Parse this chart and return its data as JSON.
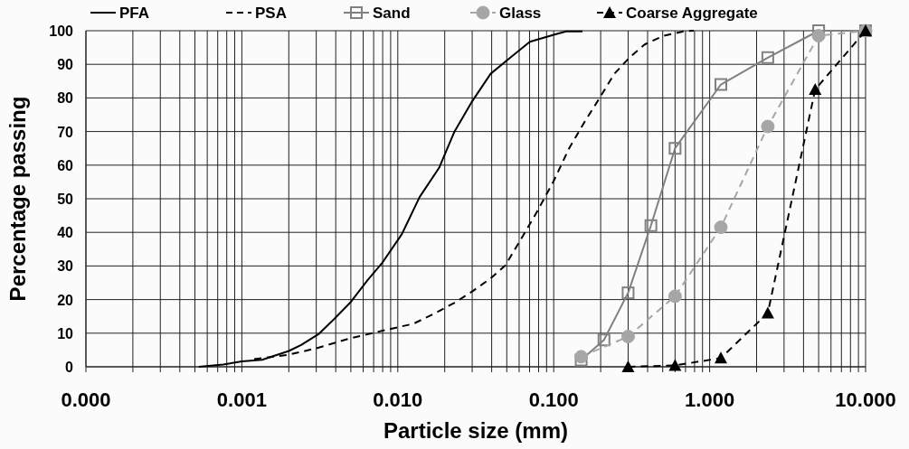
{
  "chart_data": {
    "type": "line",
    "xlabel": "Particle size (mm)",
    "ylabel": "Percentage passing",
    "log": "x",
    "grid": true,
    "legend": "top",
    "xlim": [
      0.0001,
      10
    ],
    "ylim": [
      0,
      100
    ],
    "xticks": [
      {
        "value": 0.0001,
        "label": "0.000"
      },
      {
        "value": 0.0002,
        "label": null
      },
      {
        "value": 0.0003,
        "label": null
      },
      {
        "value": 0.0004,
        "label": null
      },
      {
        "value": 0.0005,
        "label": null
      },
      {
        "value": 0.0006,
        "label": null
      },
      {
        "value": 0.0007,
        "label": null
      },
      {
        "value": 0.0008,
        "label": null
      },
      {
        "value": 0.0009,
        "label": null
      },
      {
        "value": 0.001,
        "label": "0.001"
      },
      {
        "value": 0.002,
        "label": null
      },
      {
        "value": 0.003,
        "label": null
      },
      {
        "value": 0.004,
        "label": null
      },
      {
        "value": 0.005,
        "label": null
      },
      {
        "value": 0.006,
        "label": null
      },
      {
        "value": 0.007,
        "label": null
      },
      {
        "value": 0.008,
        "label": null
      },
      {
        "value": 0.009,
        "label": null
      },
      {
        "value": 0.01,
        "label": "0.010"
      },
      {
        "value": 0.02,
        "label": null
      },
      {
        "value": 0.03,
        "label": null
      },
      {
        "value": 0.04,
        "label": null
      },
      {
        "value": 0.05,
        "label": null
      },
      {
        "value": 0.06,
        "label": null
      },
      {
        "value": 0.07,
        "label": null
      },
      {
        "value": 0.08,
        "label": null
      },
      {
        "value": 0.09,
        "label": null
      },
      {
        "value": 0.1,
        "label": "0.100"
      },
      {
        "value": 0.2,
        "label": null
      },
      {
        "value": 0.3,
        "label": null
      },
      {
        "value": 0.4,
        "label": null
      },
      {
        "value": 0.5,
        "label": null
      },
      {
        "value": 0.6,
        "label": null
      },
      {
        "value": 0.7,
        "label": null
      },
      {
        "value": 0.8,
        "label": null
      },
      {
        "value": 0.9,
        "label": null
      },
      {
        "value": 1,
        "label": "1.000"
      },
      {
        "value": 2,
        "label": null
      },
      {
        "value": 3,
        "label": null
      },
      {
        "value": 4,
        "label": null
      },
      {
        "value": 5,
        "label": null
      },
      {
        "value": 6,
        "label": null
      },
      {
        "value": 7,
        "label": null
      },
      {
        "value": 8,
        "label": null
      },
      {
        "value": 9,
        "label": null
      },
      {
        "value": 10,
        "label": "10.000"
      }
    ],
    "yticks": [
      0,
      10,
      20,
      30,
      40,
      50,
      60,
      70,
      80,
      90,
      100
    ],
    "series": [
      {
        "name": "PFA",
        "color": "#000000",
        "line_style": "solid",
        "marker": "none",
        "x": [
          0.00053,
          0.00076,
          0.001,
          0.00135,
          0.002,
          0.0024,
          0.0031,
          0.0039,
          0.005,
          0.0064,
          0.008,
          0.0106,
          0.0138,
          0.0184,
          0.023,
          0.03,
          0.0394,
          0.0514,
          0.0703,
          0.1,
          0.12,
          0.153
        ],
        "values": [
          0,
          0.7,
          1.6,
          2.1,
          4.7,
          6.5,
          9.7,
          14.2,
          19.3,
          25.8,
          31.1,
          39.4,
          50.5,
          59.2,
          69.8,
          79,
          87.2,
          91.6,
          96.7,
          98.8,
          99.8,
          99.8
        ]
      },
      {
        "name": "PSA",
        "color": "#000000",
        "line_style": "dashed",
        "marker": "none",
        "x": [
          0.0012,
          0.002,
          0.003,
          0.0049,
          0.0081,
          0.0126,
          0.0169,
          0.023,
          0.03,
          0.0394,
          0.049,
          0.0615,
          0.077,
          0.1,
          0.1255,
          0.157,
          0.2,
          0.245,
          0.306,
          0.383,
          0.5,
          0.68,
          0.79
        ],
        "values": [
          2.3,
          3.6,
          5.5,
          8.4,
          10.8,
          12.8,
          15.7,
          19,
          22.4,
          26.3,
          30.2,
          37.9,
          45.6,
          55.3,
          65,
          72.7,
          80.5,
          87.2,
          92,
          95.9,
          98.4,
          99.8,
          100
        ]
      },
      {
        "name": "Sand",
        "color": "#808080",
        "line_style": "solid",
        "marker": "square",
        "x": [
          0.15,
          0.21,
          0.3,
          0.42,
          0.6,
          1.18,
          2.36,
          5,
          10
        ],
        "values": [
          2,
          8,
          22,
          42,
          65,
          84,
          92,
          100,
          100
        ]
      },
      {
        "name": "Glass",
        "color": "#a6a6a6",
        "line_style": "dashed",
        "marker": "circle",
        "x": [
          0.15,
          0.3,
          0.6,
          1.18,
          2.36,
          5,
          10
        ],
        "values": [
          3,
          9,
          21,
          41.5,
          71.5,
          98.5,
          100
        ]
      },
      {
        "name": "Coarse Aggregate",
        "color": "#000000",
        "line_style": "dashed",
        "marker": "triangle",
        "x": [
          0.3,
          0.6,
          1.18,
          2.36,
          4.75,
          10
        ],
        "values": [
          0,
          0.4,
          2.6,
          16,
          82.5,
          100
        ]
      }
    ]
  }
}
